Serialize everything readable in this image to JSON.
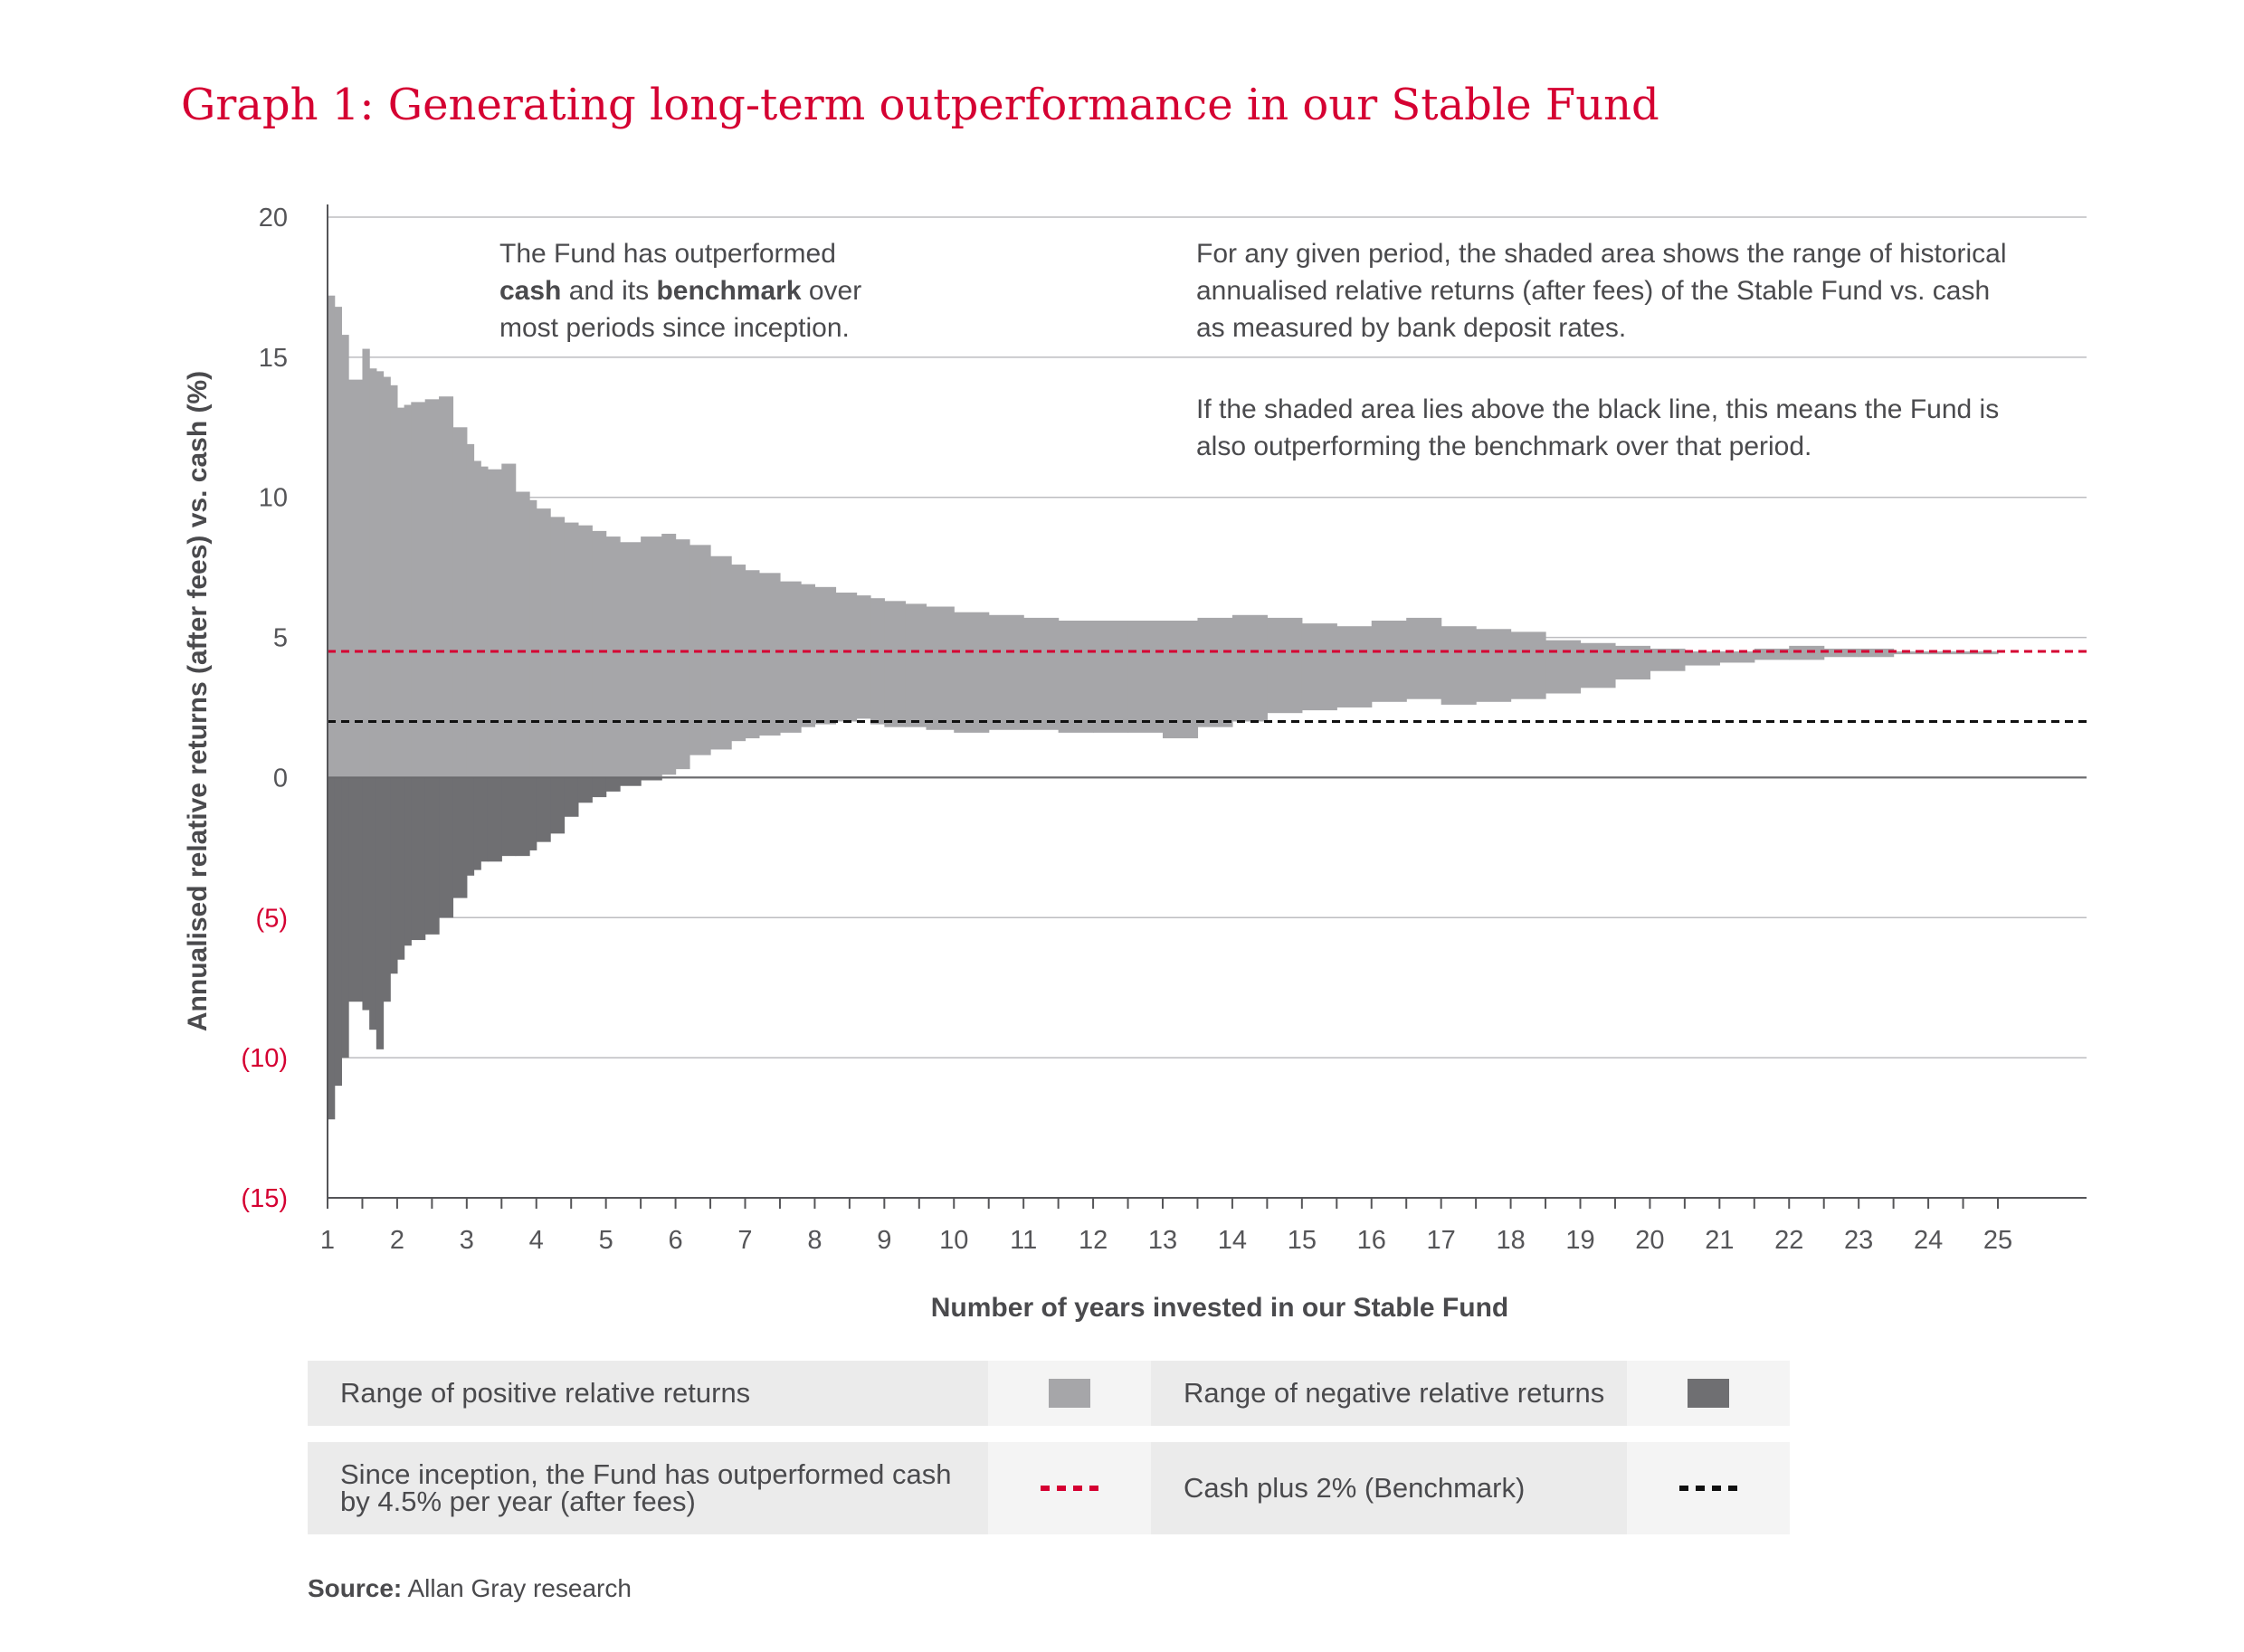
{
  "title": "Graph 1: Generating long-term outperformance in our Stable Fund",
  "chart_data": {
    "type": "area",
    "xlabel": "Number of years invested in our Stable Fund",
    "ylabel": "Annualised relative returns (after fees) vs. cash (%)",
    "xlim": [
      1,
      25
    ],
    "ylim": [
      -15,
      20
    ],
    "xticks": [
      "1",
      "2",
      "3",
      "4",
      "5",
      "6",
      "7",
      "8",
      "9",
      "10",
      "11",
      "12",
      "13",
      "14",
      "15",
      "16",
      "17",
      "18",
      "19",
      "20",
      "21",
      "22",
      "23",
      "24",
      "25"
    ],
    "yticks": [
      "20",
      "15",
      "10",
      "5",
      "0",
      "(5)",
      "(10)",
      "(15)"
    ],
    "grid": true,
    "x": [
      1.0,
      1.1,
      1.2,
      1.3,
      1.5,
      1.6,
      1.7,
      1.8,
      1.9,
      2.0,
      2.1,
      2.2,
      2.4,
      2.6,
      2.8,
      3.0,
      3.1,
      3.2,
      3.3,
      3.5,
      3.7,
      3.9,
      4.0,
      4.2,
      4.4,
      4.6,
      4.8,
      5.0,
      5.2,
      5.5,
      5.8,
      6.0,
      6.2,
      6.5,
      6.8,
      7.0,
      7.2,
      7.5,
      7.8,
      8.0,
      8.3,
      8.6,
      8.8,
      9.0,
      9.3,
      9.6,
      10.0,
      10.5,
      11.0,
      11.5,
      12.0,
      12.5,
      13.0,
      13.5,
      14.0,
      14.5,
      15.0,
      15.5,
      16.0,
      16.5,
      17.0,
      17.5,
      18.0,
      18.5,
      19.0,
      19.5,
      20.0,
      20.5,
      21.0,
      21.5,
      22.0,
      22.5,
      23.0,
      23.5,
      24.0,
      24.5,
      25.0
    ],
    "series": [
      {
        "name": "Range of positive relative returns",
        "values": [
          17.2,
          16.8,
          15.8,
          14.2,
          15.3,
          14.6,
          14.5,
          14.3,
          14.0,
          13.2,
          13.3,
          13.4,
          13.5,
          13.6,
          12.5,
          11.9,
          11.3,
          11.1,
          11.0,
          11.2,
          10.2,
          9.9,
          9.6,
          9.3,
          9.1,
          9.0,
          8.8,
          8.6,
          8.4,
          8.6,
          8.7,
          8.5,
          8.3,
          7.9,
          7.6,
          7.4,
          7.3,
          7.0,
          6.9,
          6.8,
          6.6,
          6.5,
          6.4,
          6.3,
          6.2,
          6.1,
          5.9,
          5.8,
          5.7,
          5.6,
          5.6,
          5.6,
          5.6,
          5.7,
          5.8,
          5.7,
          5.5,
          5.4,
          5.6,
          5.7,
          5.4,
          5.3,
          5.2,
          4.9,
          4.8,
          4.7,
          4.6,
          4.5,
          4.5,
          4.6,
          4.7,
          4.6,
          4.6,
          4.5,
          4.5,
          4.5,
          4.5
        ]
      },
      {
        "name": "Range of negative relative returns",
        "values": [
          -12.2,
          -11.0,
          -10.0,
          -8.0,
          -8.3,
          -9.0,
          -9.7,
          -8.0,
          -7.0,
          -6.5,
          -6.0,
          -5.8,
          -5.6,
          -5.0,
          -4.3,
          -3.5,
          -3.3,
          -3.0,
          -3.0,
          -2.8,
          -2.8,
          -2.6,
          -2.3,
          -2.0,
          -1.4,
          -0.9,
          -0.7,
          -0.5,
          -0.3,
          -0.1,
          0.1,
          0.3,
          0.8,
          1.0,
          1.3,
          1.4,
          1.5,
          1.6,
          1.8,
          1.9,
          2.0,
          2.1,
          1.9,
          1.8,
          1.8,
          1.7,
          1.6,
          1.7,
          1.7,
          1.6,
          1.6,
          1.6,
          1.4,
          1.8,
          2.0,
          2.3,
          2.4,
          2.5,
          2.7,
          2.8,
          2.6,
          2.7,
          2.8,
          3.0,
          3.2,
          3.5,
          3.8,
          4.0,
          4.1,
          4.2,
          4.2,
          4.3,
          4.3,
          4.4,
          4.4,
          4.4,
          4.5
        ]
      }
    ],
    "lines": [
      {
        "name": "Since inception, the Fund has outperformed cash by 4.5% per year (after fees)",
        "y": 4.5,
        "color": "#d50032",
        "style": "dashed"
      },
      {
        "name": "Cash plus 2% (Benchmark)",
        "y": 2.0,
        "color": "#111111",
        "style": "dashed"
      }
    ],
    "colors": {
      "positive": "#a6a6a9",
      "negative": "#6f6f72"
    },
    "annotations": {
      "left": [
        "The Fund has outperformed",
        "cash and its benchmark over",
        "most periods since inception."
      ],
      "right1": [
        "For any given period, the shaded area shows the range of historical",
        "annualised relative returns (after fees) of the Stable Fund vs. cash",
        "as measured by bank deposit rates."
      ],
      "right2": [
        "If the shaded area lies above the black line, this means the Fund is",
        "also outperforming the benchmark over that period."
      ]
    }
  },
  "legend": {
    "positive_label": "Range of positive relative returns",
    "negative_label": "Range of negative relative returns",
    "fund_label_line1": "Since inception, the Fund has outperformed cash",
    "fund_label_line2": "by 4.5% per year (after fees)",
    "benchmark_label": "Cash plus 2% (Benchmark)"
  },
  "source": {
    "label": "Source:",
    "text": " Allan Gray research"
  }
}
